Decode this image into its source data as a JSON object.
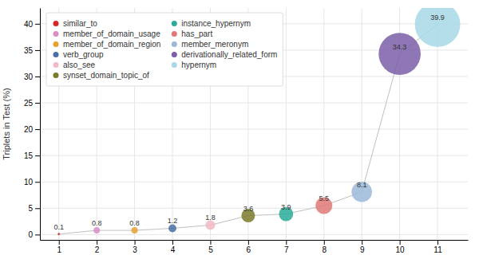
{
  "chart_data": {
    "type": "bubble",
    "ylabel": "Triplets in Test (%)",
    "color": "#c0c0c0",
    "series": [
      {
        "name": "similar_to",
        "color": "#d62728",
        "x": [
          1
        ],
        "values": [
          0.1
        ],
        "sizes": [
          0.1
        ]
      },
      {
        "name": "member_of_domain_usage",
        "color": "#d98ec4",
        "x": [
          2
        ],
        "values": [
          0.8
        ],
        "sizes": [
          0.8
        ]
      },
      {
        "name": "member_of_domain_region",
        "color": "#e8a030",
        "x": [
          3
        ],
        "values": [
          0.8
        ],
        "sizes": [
          0.8
        ]
      },
      {
        "name": "verb_group",
        "color": "#4a6fa5",
        "x": [
          4
        ],
        "values": [
          1.2
        ],
        "sizes": [
          1.2
        ]
      },
      {
        "name": "also_see",
        "color": "#f2b8c6",
        "x": [
          5
        ],
        "values": [
          1.8
        ],
        "sizes": [
          1.8
        ]
      },
      {
        "name": "synset_domain_topic_of",
        "color": "#7a7a2a",
        "x": [
          6
        ],
        "values": [
          3.6
        ],
        "sizes": [
          3.6
        ]
      },
      {
        "name": "instance_hypernym",
        "color": "#2aac9a",
        "x": [
          7
        ],
        "values": [
          3.9
        ],
        "sizes": [
          3.9
        ]
      },
      {
        "name": "has_part",
        "color": "#e07878",
        "x": [
          8
        ],
        "values": [
          5.5
        ],
        "sizes": [
          5.5
        ]
      },
      {
        "name": "member_meronym",
        "color": "#9bb8d8",
        "x": [
          9
        ],
        "values": [
          8.1
        ],
        "sizes": [
          8.1
        ]
      },
      {
        "name": "derivationally_related_form",
        "color": "#7b5ea7",
        "x": [
          10
        ],
        "values": [
          34.3
        ],
        "sizes": [
          34.3
        ]
      },
      {
        "name": "hypernym",
        "color": "#a8d8e8",
        "x": [
          11
        ],
        "values": [
          39.9
        ],
        "sizes": [
          39.9
        ]
      }
    ],
    "xlim": [
      0.5,
      11.8
    ],
    "ylim": [
      -1,
      43
    ],
    "xticks": [
      1,
      2,
      3,
      4,
      5,
      6,
      7,
      8,
      9,
      10,
      11
    ],
    "yticks": [
      0,
      5,
      10,
      15,
      20,
      25,
      30,
      35,
      40
    ],
    "grid": true,
    "legend": "upper left",
    "data_labels": true
  }
}
